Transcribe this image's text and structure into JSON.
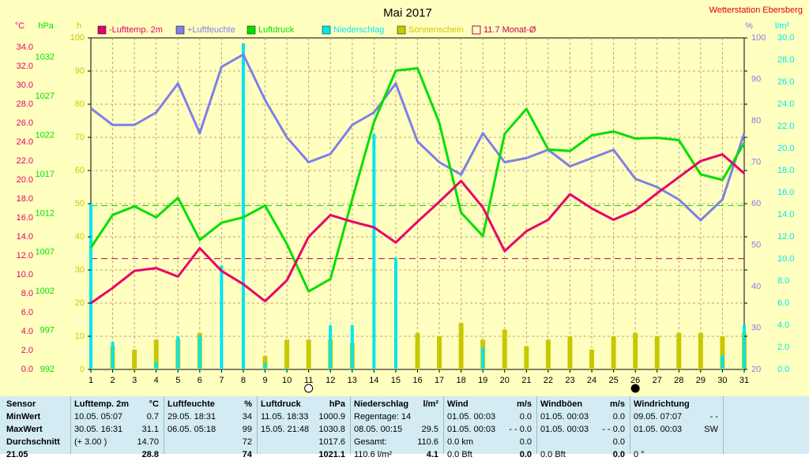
{
  "header": {
    "title": "Mai 2017",
    "station": "Wetterstation Ebersberg",
    "unit_left_1": "°C",
    "unit_left_2": "hPa",
    "unit_left_3": "h",
    "unit_right_1": "%",
    "unit_right_2": "l/m²"
  },
  "colors": {
    "background": "#ffffc0",
    "temp": "#e8006a",
    "humidity": "#7f7fe8",
    "pressure": "#00e000",
    "precip": "#00e5ee",
    "sunshine": "#c8c800",
    "monthavg": "#c00050",
    "grid": "#c0a080",
    "table_bg": "#d3ecf4"
  },
  "chart_data": {
    "type": "line",
    "title": "Mai 2017",
    "legend_placement": "top",
    "legend": [
      {
        "label": "-Lufttemp. 2m",
        "color": "#e8006a",
        "style": "solid"
      },
      {
        "label": "+Luftfeuchte",
        "color": "#7f7fe8",
        "style": "solid"
      },
      {
        "label": "Luftdruck",
        "color": "#00e000",
        "style": "solid"
      },
      {
        "label": "Niederschlag",
        "color": "#00e5ee",
        "style": "solid"
      },
      {
        "label": "Sonnenschein",
        "color": "#c8c800",
        "style": "solid"
      },
      {
        "label": "11.7 Monat-Ø",
        "color": "#c00050",
        "style": "outline"
      }
    ],
    "x": [
      1,
      2,
      3,
      4,
      5,
      6,
      7,
      8,
      9,
      10,
      11,
      12,
      13,
      14,
      15,
      16,
      17,
      18,
      19,
      20,
      21,
      22,
      23,
      24,
      25,
      26,
      27,
      28,
      29,
      30,
      31
    ],
    "x_ticks": [
      "1",
      "2",
      "3",
      "4",
      "5",
      "6",
      "7",
      "8",
      "9",
      "10",
      "11",
      "12",
      "13",
      "14",
      "15",
      "16",
      "17",
      "18",
      "19",
      "20",
      "21",
      "22",
      "23",
      "24",
      "25",
      "26",
      "27",
      "28",
      "29",
      "30",
      "31"
    ],
    "axes": {
      "temp_ticks": [
        "0.0",
        "2.0",
        "4.0",
        "6.0",
        "8.0",
        "10.0",
        "12.0",
        "14.0",
        "16.0",
        "18.0",
        "20.0",
        "22.0",
        "24.0",
        "26.0",
        "28.0",
        "30.0",
        "32.0",
        "34.0"
      ],
      "temp_range": [
        0,
        35
      ],
      "pressure_ticks": [
        "992",
        "997",
        "1002",
        "1007",
        "1012",
        "1017",
        "1022",
        "1027",
        "1032"
      ],
      "pressure_range": [
        992,
        1034.5
      ],
      "hours_ticks": [
        "0",
        "10",
        "20",
        "30",
        "40",
        "50",
        "60",
        "70",
        "80",
        "90",
        "100"
      ],
      "hours_range": [
        0,
        100
      ],
      "humidity_ticks": [
        "20",
        "30",
        "40",
        "50",
        "60",
        "70",
        "80",
        "90",
        "100"
      ],
      "humidity_range": [
        20,
        100
      ],
      "precip_ticks": [
        "0.0",
        "2.0",
        "4.0",
        "6.0",
        "8.0",
        "10.0",
        "12.0",
        "14.0",
        "16.0",
        "18.0",
        "20.0",
        "22.0",
        "24.0",
        "26.0",
        "28.0",
        "30.0"
      ],
      "precip_range": [
        0,
        30
      ]
    },
    "series": [
      {
        "name": "-Lufttemp. 2m",
        "axis": "temp",
        "values": [
          7.0,
          8.6,
          10.4,
          10.7,
          9.8,
          12.8,
          10.4,
          9.0,
          7.2,
          9.4,
          14.0,
          16.3,
          15.6,
          15.0,
          13.4,
          15.6,
          17.7,
          19.9,
          17.1,
          12.5,
          14.6,
          15.8,
          18.5,
          17.0,
          15.8,
          16.8,
          18.6,
          20.3,
          22.0,
          22.7,
          20.7
        ]
      },
      {
        "name": "+Luftfeuchte",
        "axis": "humidity",
        "values": [
          83,
          79,
          79,
          82,
          89,
          77,
          93,
          96,
          85,
          76,
          70,
          72,
          79,
          82,
          89,
          75,
          70,
          67,
          77,
          70,
          71,
          73,
          69,
          71,
          73,
          66,
          64,
          61,
          56,
          61,
          77
        ]
      },
      {
        "name": "Luftdruck",
        "axis": "pressure",
        "values": [
          1007.6,
          1011.8,
          1012.9,
          1011.5,
          1014.0,
          1008.6,
          1010.8,
          1011.5,
          1013.0,
          1008.1,
          1002.0,
          1003.6,
          1013.8,
          1023.7,
          1030.3,
          1030.6,
          1023.6,
          1012.1,
          1009.1,
          1022.2,
          1025.4,
          1020.2,
          1020.0,
          1022.0,
          1022.5,
          1021.6,
          1021.7,
          1021.4,
          1017.0,
          1016.3,
          1021.0
        ]
      },
      {
        "name": "Niederschlag",
        "axis": "precip",
        "values": [
          15.0,
          2.5,
          0.0,
          0.7,
          3.0,
          3.1,
          9.4,
          29.5,
          0.6,
          0.1,
          0.0,
          4.0,
          4.0,
          21.3,
          10.1,
          0.0,
          0.0,
          0.0,
          2.0,
          0.0,
          0.0,
          0.0,
          0.0,
          0.0,
          0.0,
          0.0,
          0.0,
          0.0,
          0.0,
          1.3,
          4.0
        ]
      },
      {
        "name": "Sonnenschein",
        "axis": "hours",
        "values": [
          0,
          7,
          6,
          9,
          9,
          11,
          0,
          0,
          4,
          9,
          9,
          9,
          8,
          0,
          0,
          11,
          10,
          14,
          9,
          12,
          7,
          9,
          10,
          6,
          10,
          11,
          10,
          11,
          11,
          10,
          11
        ]
      }
    ],
    "reference_lines": [
      {
        "axis": "temp",
        "value": 11.7,
        "color": "#c00050",
        "style": "dashed"
      },
      {
        "axis": "pressure",
        "value": 1013.0,
        "color": "#00e000",
        "style": "dashed"
      }
    ],
    "moon_phases": [
      {
        "day": 11,
        "phase": "full"
      },
      {
        "day": 26,
        "phase": "new"
      }
    ]
  },
  "table": {
    "columns": [
      {
        "rows": [
          [
            "Sensor"
          ],
          [
            "MinWert"
          ],
          [
            "MaxWert"
          ],
          [
            "Durchschnitt"
          ],
          [
            "21.05"
          ]
        ]
      },
      {
        "header": [
          "Lufttemp. 2m",
          "°C"
        ],
        "rows": [
          [
            "10.05.  05:07",
            "0.7"
          ],
          [
            "30.05.  16:31",
            "31.1"
          ],
          [
            "(+ 3.00 )",
            "14.70"
          ],
          [
            "",
            "28.8"
          ]
        ]
      },
      {
        "header": [
          "Luftfeuchte",
          "%"
        ],
        "rows": [
          [
            "29.05.  18:31",
            "34"
          ],
          [
            "06.05.  05:18",
            "99"
          ],
          [
            "",
            "72"
          ],
          [
            "",
            "74"
          ]
        ]
      },
      {
        "header": [
          "Luftdruck",
          "hPa"
        ],
        "rows": [
          [
            "11.05.  18:33",
            "1000.9"
          ],
          [
            "15.05.  21:48",
            "1030.8"
          ],
          [
            "",
            "1017.6"
          ],
          [
            "",
            "1021.1"
          ]
        ]
      },
      {
        "header": [
          "Niederschlag",
          "l/m²"
        ],
        "rows": [
          [
            "Regentage: 14",
            ""
          ],
          [
            "08.05.  00:15",
            "29.5"
          ],
          [
            "Gesamt:",
            "110.6"
          ],
          [
            "110.6 l/m²",
            "4.1"
          ]
        ]
      },
      {
        "header": [
          "Wind",
          "m/s"
        ],
        "rows": [
          [
            "01.05.  00:03",
            "0.0"
          ],
          [
            "01.05.  00:03",
            "- - 0.0"
          ],
          [
            "0.0 km",
            "0.0"
          ],
          [
            "0.0 Bft",
            "0.0"
          ]
        ]
      },
      {
        "header": [
          "Windböen",
          "m/s"
        ],
        "rows": [
          [
            "01.05.  00:03",
            "0.0"
          ],
          [
            "01.05.  00:03",
            "- - 0.0"
          ],
          [
            "",
            "0.0"
          ],
          [
            "0.0 Bft",
            "0.0"
          ]
        ]
      },
      {
        "header": [
          "Windrichtung",
          ""
        ],
        "rows": [
          [
            "09.05.  07:07",
            "- -"
          ],
          [
            "01.05.  00:03",
            "SW"
          ],
          [
            "",
            ""
          ],
          [
            "0 °",
            ""
          ]
        ]
      }
    ]
  }
}
